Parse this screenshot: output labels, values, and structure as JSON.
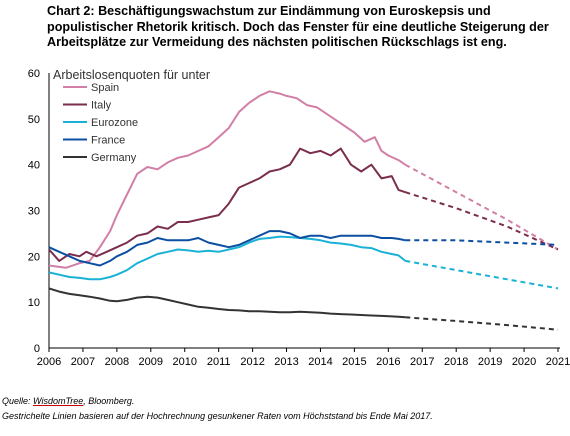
{
  "title": "Chart 2: Beschäftigungswachstum zur Eindämmung von Euroskepsis und populistischer Rhetorik kritisch. Doch das Fenster für eine deutliche Steigerung der Arbeitsplätze zur Vermeidung des nächsten politischen Rückschlags ist eng.",
  "source_prefix": "Quelle: ",
  "source_name": "WisdomTree",
  "source_suffix": ", Bloomberg.",
  "footnote": "Gestrichelte Linien basieren auf der Hochrechnung gesunkener Raten vom Höchststand bis Ende Mai 2017.",
  "chart_data": {
    "type": "line",
    "ylabel": "Arbeitslosenquoten für unter",
    "ylim": [
      0,
      60
    ],
    "yticks": [
      0,
      10,
      20,
      30,
      40,
      50,
      60
    ],
    "xlim": [
      2006,
      2021
    ],
    "xticks": [
      2006,
      2007,
      2008,
      2009,
      2010,
      2011,
      2012,
      2013,
      2014,
      2015,
      2016,
      2017,
      2018,
      2019,
      2020,
      2021
    ],
    "grid": false,
    "legend_position": "top-left",
    "series": [
      {
        "name": "Spain",
        "color": "#d17fa6",
        "actual": [
          [
            2006.0,
            18.0
          ],
          [
            2006.5,
            17.5
          ],
          [
            2006.9,
            18.5
          ],
          [
            2007.2,
            19.0
          ],
          [
            2007.5,
            22.0
          ],
          [
            2007.8,
            25.5
          ],
          [
            2008.0,
            29.0
          ],
          [
            2008.3,
            33.5
          ],
          [
            2008.6,
            38.0
          ],
          [
            2008.9,
            39.5
          ],
          [
            2009.2,
            39.0
          ],
          [
            2009.5,
            40.5
          ],
          [
            2009.8,
            41.5
          ],
          [
            2010.1,
            42.0
          ],
          [
            2010.4,
            43.0
          ],
          [
            2010.7,
            44.0
          ],
          [
            2011.0,
            46.0
          ],
          [
            2011.3,
            48.0
          ],
          [
            2011.6,
            51.5
          ],
          [
            2011.9,
            53.5
          ],
          [
            2012.2,
            55.0
          ],
          [
            2012.5,
            56.0
          ],
          [
            2012.8,
            55.5
          ],
          [
            2013.0,
            55.0
          ],
          [
            2013.3,
            54.5
          ],
          [
            2013.6,
            53.0
          ],
          [
            2013.9,
            52.5
          ],
          [
            2014.2,
            51.0
          ],
          [
            2014.5,
            49.5
          ],
          [
            2014.8,
            48.0
          ],
          [
            2015.0,
            47.0
          ],
          [
            2015.3,
            45.0
          ],
          [
            2015.6,
            46.0
          ],
          [
            2015.8,
            43.0
          ],
          [
            2016.0,
            42.0
          ],
          [
            2016.3,
            41.0
          ],
          [
            2016.5,
            40.0
          ]
        ],
        "projection": [
          [
            2016.5,
            40.0
          ],
          [
            2018.0,
            34.0
          ],
          [
            2019.5,
            28.0
          ],
          [
            2021.0,
            21.5
          ]
        ]
      },
      {
        "name": "Italy",
        "color": "#7b2d4e",
        "actual": [
          [
            2006.0,
            21.5
          ],
          [
            2006.3,
            19.0
          ],
          [
            2006.6,
            20.5
          ],
          [
            2006.9,
            20.0
          ],
          [
            2007.1,
            21.0
          ],
          [
            2007.4,
            20.0
          ],
          [
            2007.7,
            21.0
          ],
          [
            2008.0,
            22.0
          ],
          [
            2008.3,
            23.0
          ],
          [
            2008.6,
            24.5
          ],
          [
            2008.9,
            25.0
          ],
          [
            2009.2,
            26.5
          ],
          [
            2009.5,
            26.0
          ],
          [
            2009.8,
            27.5
          ],
          [
            2010.1,
            27.5
          ],
          [
            2010.4,
            28.0
          ],
          [
            2010.7,
            28.5
          ],
          [
            2011.0,
            29.0
          ],
          [
            2011.3,
            31.5
          ],
          [
            2011.6,
            35.0
          ],
          [
            2011.9,
            36.0
          ],
          [
            2012.2,
            37.0
          ],
          [
            2012.5,
            38.5
          ],
          [
            2012.8,
            39.0
          ],
          [
            2013.1,
            40.0
          ],
          [
            2013.4,
            43.5
          ],
          [
            2013.7,
            42.5
          ],
          [
            2014.0,
            43.0
          ],
          [
            2014.3,
            42.0
          ],
          [
            2014.6,
            43.5
          ],
          [
            2014.9,
            40.0
          ],
          [
            2015.2,
            38.5
          ],
          [
            2015.5,
            40.0
          ],
          [
            2015.8,
            37.0
          ],
          [
            2016.1,
            37.5
          ],
          [
            2016.3,
            34.5
          ],
          [
            2016.5,
            34.0
          ]
        ],
        "projection": [
          [
            2016.5,
            34.0
          ],
          [
            2018.0,
            30.5
          ],
          [
            2019.5,
            26.5
          ],
          [
            2021.0,
            21.5
          ]
        ]
      },
      {
        "name": "Eurozone",
        "color": "#19b2d6",
        "actual": [
          [
            2006.0,
            16.5
          ],
          [
            2006.3,
            16.0
          ],
          [
            2006.6,
            15.5
          ],
          [
            2006.9,
            15.3
          ],
          [
            2007.2,
            15.0
          ],
          [
            2007.5,
            15.0
          ],
          [
            2007.8,
            15.5
          ],
          [
            2008.0,
            16.0
          ],
          [
            2008.3,
            17.0
          ],
          [
            2008.6,
            18.5
          ],
          [
            2008.9,
            19.5
          ],
          [
            2009.2,
            20.5
          ],
          [
            2009.5,
            21.0
          ],
          [
            2009.8,
            21.5
          ],
          [
            2010.1,
            21.3
          ],
          [
            2010.4,
            21.0
          ],
          [
            2010.7,
            21.2
          ],
          [
            2011.0,
            21.0
          ],
          [
            2011.3,
            21.5
          ],
          [
            2011.6,
            22.0
          ],
          [
            2011.9,
            23.0
          ],
          [
            2012.2,
            23.8
          ],
          [
            2012.5,
            24.0
          ],
          [
            2012.8,
            24.3
          ],
          [
            2013.1,
            24.2
          ],
          [
            2013.4,
            24.0
          ],
          [
            2013.7,
            23.8
          ],
          [
            2014.0,
            23.5
          ],
          [
            2014.3,
            23.0
          ],
          [
            2014.6,
            22.8
          ],
          [
            2014.9,
            22.5
          ],
          [
            2015.2,
            22.0
          ],
          [
            2015.5,
            21.8
          ],
          [
            2015.8,
            21.0
          ],
          [
            2016.1,
            20.5
          ],
          [
            2016.3,
            20.2
          ],
          [
            2016.5,
            19.0
          ]
        ],
        "projection": [
          [
            2016.5,
            19.0
          ],
          [
            2018.0,
            17.0
          ],
          [
            2019.5,
            15.0
          ],
          [
            2021.0,
            13.0
          ]
        ]
      },
      {
        "name": "France",
        "color": "#0b4fa1",
        "actual": [
          [
            2006.0,
            22.0
          ],
          [
            2006.3,
            21.0
          ],
          [
            2006.6,
            20.0
          ],
          [
            2006.9,
            19.0
          ],
          [
            2007.2,
            18.5
          ],
          [
            2007.5,
            18.0
          ],
          [
            2007.8,
            19.0
          ],
          [
            2008.0,
            20.0
          ],
          [
            2008.3,
            21.0
          ],
          [
            2008.6,
            22.5
          ],
          [
            2008.9,
            23.0
          ],
          [
            2009.2,
            24.0
          ],
          [
            2009.5,
            23.5
          ],
          [
            2009.8,
            23.5
          ],
          [
            2010.1,
            23.5
          ],
          [
            2010.4,
            24.0
          ],
          [
            2010.7,
            23.0
          ],
          [
            2011.0,
            22.5
          ],
          [
            2011.3,
            22.0
          ],
          [
            2011.6,
            22.5
          ],
          [
            2011.9,
            23.5
          ],
          [
            2012.2,
            24.5
          ],
          [
            2012.5,
            25.5
          ],
          [
            2012.8,
            25.5
          ],
          [
            2013.1,
            25.0
          ],
          [
            2013.4,
            24.0
          ],
          [
            2013.7,
            24.5
          ],
          [
            2014.0,
            24.5
          ],
          [
            2014.3,
            24.0
          ],
          [
            2014.6,
            24.5
          ],
          [
            2014.9,
            24.5
          ],
          [
            2015.2,
            24.5
          ],
          [
            2015.5,
            24.5
          ],
          [
            2015.8,
            24.0
          ],
          [
            2016.1,
            24.0
          ],
          [
            2016.3,
            23.8
          ],
          [
            2016.5,
            23.5
          ]
        ],
        "projection": [
          [
            2016.5,
            23.5
          ],
          [
            2018.0,
            23.5
          ],
          [
            2019.5,
            23.0
          ],
          [
            2021.0,
            22.5
          ]
        ]
      },
      {
        "name": "Germany",
        "color": "#333333",
        "actual": [
          [
            2006.0,
            13.0
          ],
          [
            2006.3,
            12.3
          ],
          [
            2006.6,
            11.8
          ],
          [
            2006.9,
            11.5
          ],
          [
            2007.2,
            11.2
          ],
          [
            2007.5,
            10.8
          ],
          [
            2007.8,
            10.3
          ],
          [
            2008.0,
            10.2
          ],
          [
            2008.3,
            10.5
          ],
          [
            2008.6,
            11.0
          ],
          [
            2008.9,
            11.2
          ],
          [
            2009.2,
            11.0
          ],
          [
            2009.5,
            10.5
          ],
          [
            2009.8,
            10.0
          ],
          [
            2010.1,
            9.5
          ],
          [
            2010.4,
            9.0
          ],
          [
            2010.7,
            8.8
          ],
          [
            2011.0,
            8.5
          ],
          [
            2011.3,
            8.3
          ],
          [
            2011.6,
            8.2
          ],
          [
            2011.9,
            8.0
          ],
          [
            2012.2,
            8.0
          ],
          [
            2012.5,
            7.9
          ],
          [
            2012.8,
            7.8
          ],
          [
            2013.1,
            7.8
          ],
          [
            2013.4,
            7.9
          ],
          [
            2013.7,
            7.8
          ],
          [
            2014.0,
            7.7
          ],
          [
            2014.3,
            7.5
          ],
          [
            2014.6,
            7.4
          ],
          [
            2014.9,
            7.3
          ],
          [
            2015.2,
            7.2
          ],
          [
            2015.5,
            7.1
          ],
          [
            2015.8,
            7.0
          ],
          [
            2016.1,
            6.9
          ],
          [
            2016.3,
            6.8
          ],
          [
            2016.5,
            6.7
          ]
        ],
        "projection": [
          [
            2016.5,
            6.7
          ],
          [
            2018.0,
            5.9
          ],
          [
            2019.5,
            5.0
          ],
          [
            2021.0,
            4.0
          ]
        ]
      }
    ]
  }
}
